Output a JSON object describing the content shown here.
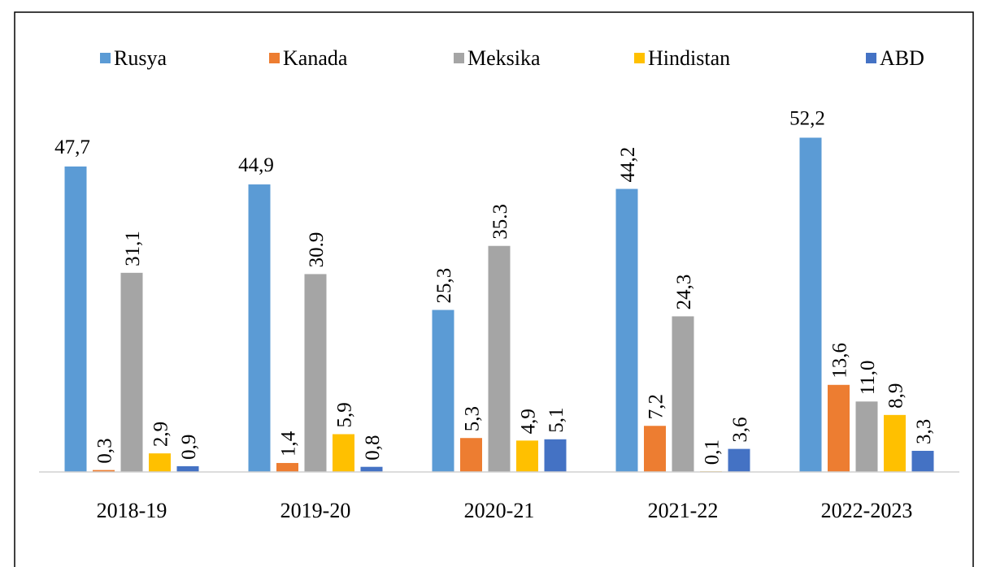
{
  "chart_data": {
    "type": "bar",
    "categories": [
      "2018-19",
      "2019-20",
      "2020-21",
      "2021-22",
      "2022-2023"
    ],
    "series": [
      {
        "name": "Rusya",
        "color": "#5b9bd5",
        "values": [
          47.7,
          44.9,
          25.3,
          44.2,
          52.2
        ],
        "value_labels": [
          "47,7",
          "44,9",
          "25,3",
          "44,2",
          "52,2"
        ]
      },
      {
        "name": "Kanada",
        "color": "#ed7d31",
        "values": [
          0.3,
          1.4,
          5.3,
          7.2,
          13.6
        ],
        "value_labels": [
          "0,3",
          "1,4",
          "5,3",
          "7,2",
          "13,6"
        ]
      },
      {
        "name": "Meksika",
        "color": "#a5a5a5",
        "values": [
          31.1,
          30.9,
          35.3,
          24.3,
          11.0
        ],
        "value_labels": [
          "31,1",
          "30.9",
          "35.3",
          "24,3",
          "11,0"
        ]
      },
      {
        "name": "Hindistan",
        "color": "#ffc000",
        "values": [
          2.9,
          5.9,
          4.9,
          0.1,
          8.9
        ],
        "value_labels": [
          "2,9",
          "5,9",
          "4,9",
          "0,1",
          "8,9"
        ]
      },
      {
        "name": "ABD",
        "color": "#4472c4",
        "values": [
          0.9,
          0.8,
          5.1,
          3.6,
          3.3
        ],
        "value_labels": [
          "0,9",
          "0,8",
          "5,1",
          "3,6",
          "3,3"
        ]
      }
    ],
    "ylim": [
      0,
      60
    ],
    "legend": "top"
  }
}
